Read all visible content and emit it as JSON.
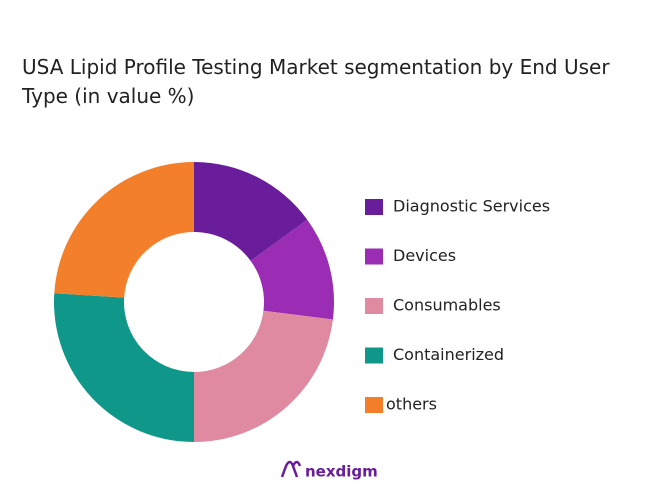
{
  "chart_data": {
    "type": "donut",
    "title": "USA Lipid Profile Testing Market segmentation by End User Type (in value %)",
    "categories": [
      "Diagnostic Services",
      "Devices",
      "Consumables",
      "Containerized",
      "others"
    ],
    "values": [
      15,
      12,
      23,
      26,
      24
    ],
    "colors": [
      "#6a1d9b",
      "#9a2db3",
      "#e08aa2",
      "#0f978a",
      "#f47f2a"
    ],
    "legend": "right",
    "brand": "nexdigm"
  }
}
